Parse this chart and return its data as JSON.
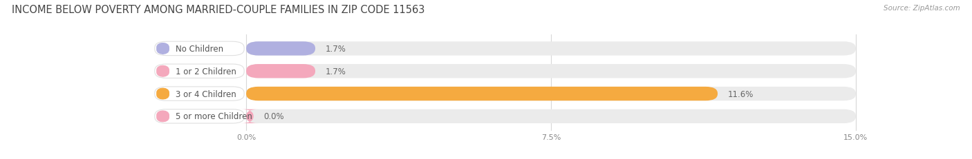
{
  "title": "INCOME BELOW POVERTY AMONG MARRIED-COUPLE FAMILIES IN ZIP CODE 11563",
  "source": "Source: ZipAtlas.com",
  "categories": [
    "No Children",
    "1 or 2 Children",
    "3 or 4 Children",
    "5 or more Children"
  ],
  "values": [
    1.7,
    1.7,
    11.6,
    0.0
  ],
  "bar_colors": [
    "#b0b0e0",
    "#f4a8bc",
    "#f5aa40",
    "#f4a8bc"
  ],
  "max_val": 15.0,
  "xtick_vals": [
    0.0,
    7.5,
    15.0
  ],
  "xtick_labels": [
    "0.0%",
    "7.5%",
    "15.0%"
  ],
  "background_color": "#ffffff",
  "bar_bg_color": "#ebebeb",
  "title_fontsize": 10.5,
  "bar_height": 0.62,
  "value_label_color": "#666666",
  "label_box_color": "#ffffff",
  "label_text_color": "#555555",
  "grid_color": "#d8d8d8",
  "source_color": "#999999",
  "title_color": "#444444"
}
